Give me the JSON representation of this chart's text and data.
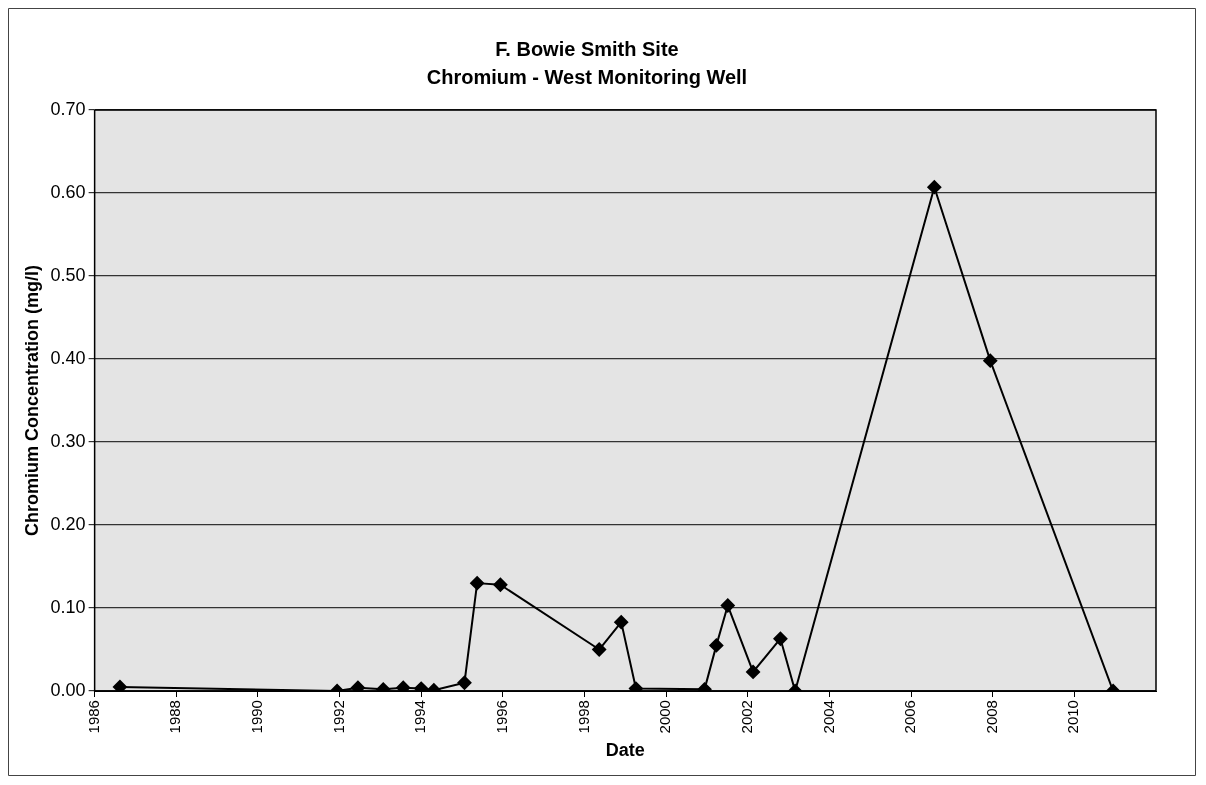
{
  "chart_data": {
    "type": "line",
    "title": "F. Bowie Smith Site",
    "subtitle": "Chromium - West Monitoring Well",
    "xlabel": "Date",
    "ylabel": "Chromium Concentration (mg/l)",
    "series": [
      {
        "color": "#000000",
        "x": [
          1986.62,
          1991.94,
          1992.45,
          1993.07,
          1993.56,
          1994.0,
          1994.31,
          1995.06,
          1995.37,
          1995.94,
          1998.36,
          1998.9,
          1999.26,
          2000.94,
          2001.23,
          2001.51,
          2002.13,
          2002.8,
          2003.16,
          2006.57,
          2007.94,
          2010.95
        ],
        "values": [
          0.005,
          0.0,
          0.004,
          0.002,
          0.004,
          0.003,
          0.001,
          0.01,
          0.13,
          0.128,
          0.05,
          0.083,
          0.003,
          0.002,
          0.055,
          0.103,
          0.023,
          0.063,
          0.0,
          0.607,
          0.398,
          0.0
        ]
      }
    ],
    "xlim": [
      1986,
      2012
    ],
    "xticks": [
      1986,
      1988,
      1990,
      1992,
      1994,
      1996,
      1998,
      2000,
      2002,
      2004,
      2006,
      2008,
      2010
    ],
    "ylim": [
      0,
      0.7
    ],
    "yticks": [
      {
        "value": 0,
        "label": "0.00"
      },
      {
        "value": 0.1,
        "label": "0.10"
      },
      {
        "value": 0.2,
        "label": "0.20"
      },
      {
        "value": 0.3,
        "label": "0.30"
      },
      {
        "value": 0.4,
        "label": "0.40"
      },
      {
        "value": 0.5,
        "label": "0.50"
      },
      {
        "value": 0.6,
        "label": "0.60"
      },
      {
        "value": 0.7,
        "label": "0.70"
      }
    ],
    "grid": "y",
    "legend": false,
    "marker": "diamond",
    "line_style": "solid"
  }
}
